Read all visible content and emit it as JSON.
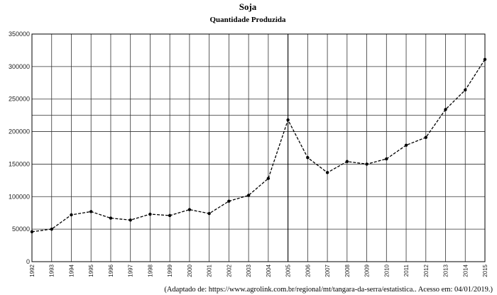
{
  "chart_data": {
    "type": "line",
    "title": "Soja",
    "subtitle": "Quantidade Produzida",
    "xlabel": "",
    "ylabel": "",
    "categories": [
      "1992",
      "1993",
      "1994",
      "1995",
      "1996",
      "1997",
      "1998",
      "1999",
      "2000",
      "2001",
      "2002",
      "2003",
      "2004",
      "2005",
      "2006",
      "2007",
      "2008",
      "2009",
      "2010",
      "2011",
      "2012",
      "2013",
      "2014",
      "2015"
    ],
    "x_tick_labels": [
      "1992",
      "1993",
      "1994",
      "1995",
      "1996",
      "1997",
      "1998",
      "1999",
      "2000",
      "2001",
      "2002",
      "2003",
      "2004",
      "2005",
      "2006",
      "2007",
      "2008",
      "2009",
      "2010",
      "2011",
      "2012",
      "2013",
      "2014",
      "2015"
    ],
    "values": [
      46000,
      50000,
      72000,
      77000,
      67000,
      64000,
      73000,
      71000,
      80000,
      74000,
      93000,
      102000,
      128000,
      218000,
      160000,
      137000,
      154000,
      150000,
      158000,
      179000,
      191000,
      234000,
      264000,
      311000
    ],
    "ylim": [
      0,
      350000
    ],
    "y_ticks": [
      0,
      50000,
      100000,
      150000,
      200000,
      250000,
      300000,
      350000
    ],
    "y_tick_labels": [
      "0",
      "50000",
      "100000",
      "150000",
      "200000",
      "250000",
      "300000",
      "350000"
    ],
    "grid": true,
    "colors": {
      "line": "#000000",
      "grid": "#333333",
      "background": "#ffffff"
    }
  },
  "source": "(Adaptado de: https://www.agrolink.com.br/regional/mt/tangara-da-serra/estatistica.. Acesso em: 04/01/2019.)"
}
